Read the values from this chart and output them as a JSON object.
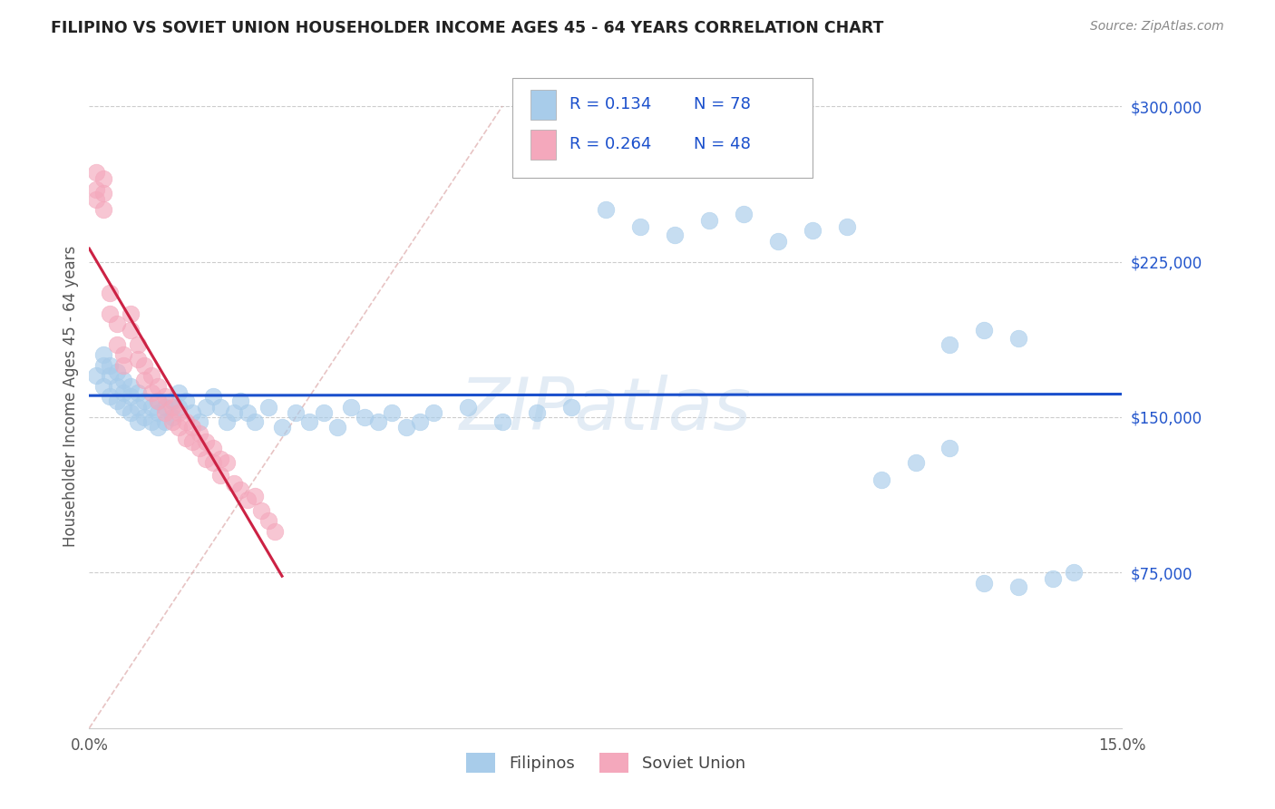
{
  "title": "FILIPINO VS SOVIET UNION HOUSEHOLDER INCOME AGES 45 - 64 YEARS CORRELATION CHART",
  "source": "Source: ZipAtlas.com",
  "ylabel": "Householder Income Ages 45 - 64 years",
  "xlim": [
    0.0,
    0.15
  ],
  "ylim": [
    0,
    320000
  ],
  "yticks_right": [
    0,
    75000,
    150000,
    225000,
    300000
  ],
  "ytick_labels_right": [
    "",
    "$75,000",
    "$150,000",
    "$225,000",
    "$300,000"
  ],
  "watermark": "ZIPatlas",
  "blue_color": "#A8CCEA",
  "pink_color": "#F4A8BC",
  "blue_line_color": "#1A4FCC",
  "pink_line_color": "#CC2244",
  "legend_R1": "0.134",
  "legend_N1": "78",
  "legend_R2": "0.264",
  "legend_N2": "48",
  "legend_label1": "Filipinos",
  "legend_label2": "Soviet Union",
  "filipinos_x": [
    0.001,
    0.002,
    0.002,
    0.002,
    0.003,
    0.003,
    0.003,
    0.004,
    0.004,
    0.004,
    0.005,
    0.005,
    0.005,
    0.006,
    0.006,
    0.006,
    0.007,
    0.007,
    0.007,
    0.008,
    0.008,
    0.009,
    0.009,
    0.01,
    0.01,
    0.01,
    0.011,
    0.011,
    0.012,
    0.012,
    0.013,
    0.013,
    0.014,
    0.015,
    0.016,
    0.017,
    0.018,
    0.019,
    0.02,
    0.021,
    0.022,
    0.023,
    0.024,
    0.026,
    0.028,
    0.03,
    0.032,
    0.034,
    0.036,
    0.038,
    0.04,
    0.042,
    0.044,
    0.046,
    0.048,
    0.05,
    0.055,
    0.06,
    0.065,
    0.07,
    0.075,
    0.08,
    0.085,
    0.09,
    0.095,
    0.1,
    0.105,
    0.11,
    0.115,
    0.12,
    0.125,
    0.13,
    0.135,
    0.14,
    0.143,
    0.125,
    0.13,
    0.135
  ],
  "filipinos_y": [
    170000,
    165000,
    175000,
    180000,
    160000,
    170000,
    175000,
    158000,
    165000,
    172000,
    155000,
    162000,
    168000,
    152000,
    160000,
    165000,
    148000,
    155000,
    162000,
    150000,
    158000,
    148000,
    155000,
    145000,
    152000,
    158000,
    148000,
    155000,
    150000,
    158000,
    155000,
    162000,
    158000,
    152000,
    148000,
    155000,
    160000,
    155000,
    148000,
    152000,
    158000,
    152000,
    148000,
    155000,
    145000,
    152000,
    148000,
    152000,
    145000,
    155000,
    150000,
    148000,
    152000,
    145000,
    148000,
    152000,
    155000,
    148000,
    152000,
    155000,
    250000,
    242000,
    238000,
    245000,
    248000,
    235000,
    240000,
    242000,
    120000,
    128000,
    135000,
    70000,
    68000,
    72000,
    75000,
    185000,
    192000,
    188000
  ],
  "soviet_x": [
    0.001,
    0.001,
    0.001,
    0.002,
    0.002,
    0.002,
    0.003,
    0.003,
    0.004,
    0.004,
    0.005,
    0.005,
    0.006,
    0.006,
    0.007,
    0.007,
    0.008,
    0.008,
    0.009,
    0.009,
    0.01,
    0.01,
    0.011,
    0.011,
    0.012,
    0.012,
    0.013,
    0.013,
    0.014,
    0.014,
    0.015,
    0.015,
    0.016,
    0.016,
    0.017,
    0.017,
    0.018,
    0.018,
    0.019,
    0.019,
    0.02,
    0.021,
    0.022,
    0.023,
    0.024,
    0.025,
    0.026,
    0.027
  ],
  "soviet_y": [
    268000,
    260000,
    255000,
    265000,
    258000,
    250000,
    210000,
    200000,
    195000,
    185000,
    180000,
    175000,
    200000,
    192000,
    185000,
    178000,
    175000,
    168000,
    170000,
    162000,
    165000,
    158000,
    160000,
    152000,
    155000,
    148000,
    152000,
    145000,
    148000,
    140000,
    145000,
    138000,
    142000,
    135000,
    138000,
    130000,
    135000,
    128000,
    130000,
    122000,
    128000,
    118000,
    115000,
    110000,
    112000,
    105000,
    100000,
    95000
  ]
}
